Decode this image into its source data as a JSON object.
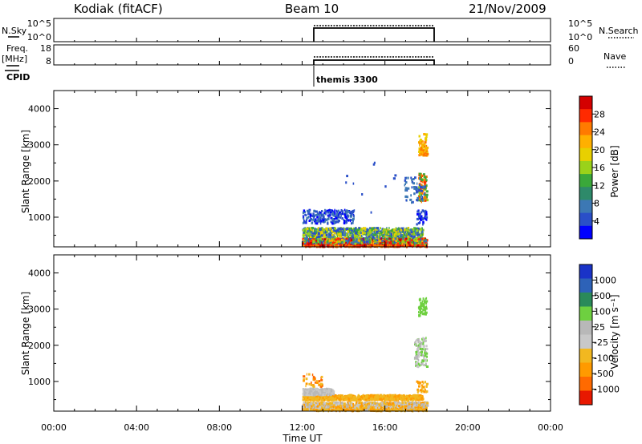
{
  "header": {
    "radar": "Kodiak (fitACF)",
    "beam": "Beam 10",
    "date": "21/Nov/2009"
  },
  "nsky_panel": {
    "left_label": "N.Sky",
    "left_ticks": [
      "10^5",
      "10^0"
    ],
    "right_ticks": [
      "10^5",
      "10^0"
    ],
    "right_label": "N.Search"
  },
  "freq_panel": {
    "left_label_1": "Freq.",
    "left_label_2": "[MHz]",
    "left_ticks": [
      "18",
      "8"
    ],
    "right_ticks": [
      "60",
      "0"
    ],
    "right_label": "Nave"
  },
  "cpid": {
    "label": "CPID",
    "program": "themis 3300"
  },
  "time_axis": {
    "title": "Time UT",
    "ticks": [
      "00:00",
      "04:00",
      "08:00",
      "12:00",
      "16:00",
      "20:00",
      "00:00"
    ]
  },
  "chart_data": [
    {
      "type": "heatmap",
      "panel": "power",
      "ylabel": "Slant Range [km]",
      "xlabel": "Time UT",
      "x_hours": [
        0,
        24
      ],
      "ylim": [
        180,
        4500
      ],
      "yticks": [
        1000,
        2000,
        3000,
        4000
      ],
      "data_window_hours": [
        12.0,
        18.0
      ],
      "colorbar": {
        "label": "Power [dB]",
        "ticks": [
          "28",
          "24",
          "20",
          "16",
          "12",
          "8",
          "4"
        ],
        "colors": [
          "#d40000",
          "#ff2a00",
          "#ff7a00",
          "#ffb000",
          "#e8d000",
          "#9ad21a",
          "#3aa83a",
          "#2e8a6a",
          "#3c78b4",
          "#2a4fc8",
          "#0000ff"
        ]
      }
    },
    {
      "type": "heatmap",
      "panel": "velocity",
      "ylabel": "Slant Range [km]",
      "xlabel": "Time UT",
      "x_hours": [
        0,
        24
      ],
      "ylim": [
        180,
        4500
      ],
      "yticks": [
        1000,
        2000,
        3000,
        4000
      ],
      "data_window_hours": [
        12.0,
        18.0
      ],
      "colorbar": {
        "label": "Velocity [m s⁻¹]",
        "ticks": [
          "1000",
          "500",
          "100",
          "25",
          "-25",
          "-100",
          "-500",
          "-1000"
        ],
        "colors": [
          "#1a33c8",
          "#2d62b8",
          "#2a8a5a",
          "#6ed040",
          "#b8b8b8",
          "#c8c8c8",
          "#f2b820",
          "#ff9a00",
          "#ff6a00",
          "#e81800"
        ]
      }
    }
  ]
}
